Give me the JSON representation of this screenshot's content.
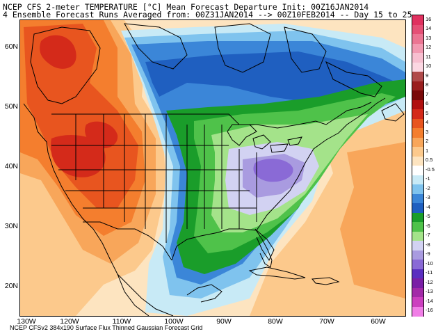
{
  "header": {
    "line1": "NCEP CFS 2-meter TEMPERATURE [°C] Mean Forecast Departure Init: 00Z16JAN2014",
    "line2": "4 Ensemble Forecast Runs Averaged from: 00Z31JAN2014 --> 00Z10FEB2014 -- Day 15 to 25"
  },
  "footer": "NCEP CFSv2 384x190 Surface Flux Thinned Gaussian Forecast Grid",
  "axes": {
    "lat_labels": [
      "60N",
      "50N",
      "40N",
      "30N",
      "20N"
    ],
    "lon_labels": [
      "130W",
      "120W",
      "110W",
      "100W",
      "90W",
      "80W",
      "70W",
      "60W"
    ]
  },
  "legend": {
    "labels": [
      "16",
      "14",
      "13",
      "12",
      "11",
      "10",
      "9",
      "8",
      "7",
      "6",
      "5",
      "4",
      "3",
      "2",
      "1",
      "0.5",
      "-0.5",
      "-1",
      "-2",
      "-3",
      "-4",
      "-5",
      "-6",
      "-7",
      "-8",
      "-9",
      "-10",
      "-11",
      "-12",
      "-13",
      "-14",
      "-16"
    ],
    "colors": [
      "#e0315f",
      "#e55076",
      "#eb7593",
      "#f29ab2",
      "#f7bfd0",
      "#fbd7e2",
      "#b04a4a",
      "#9a1f1f",
      "#7a0a0a",
      "#b01010",
      "#d42a1a",
      "#e8551f",
      "#f47e2e",
      "#f8a65a",
      "#fcc98c",
      "#fde4c0",
      "#ffffff",
      "#c8eaf6",
      "#7fc3ee",
      "#3b86d8",
      "#1f5fc0",
      "#1a9d2a",
      "#4fc24a",
      "#a4e38a",
      "#d2d2f2",
      "#a99be0",
      "#8a6ad6",
      "#5a2ec0",
      "#7a1fa6",
      "#a32aa8",
      "#cc3fbf",
      "#f07ee6"
    ]
  },
  "colors": {
    "warm_outer": "#fde4c0",
    "warm_light": "#fcc98c",
    "warm_mid": "#f8a65a",
    "warm_strong": "#f47e2e",
    "warm_core": "#e8551f",
    "hot": "#d42a1a",
    "neutral": "#ffffff",
    "cool_light": "#c8eaf6",
    "cool_mid": "#7fc3ee",
    "cool_strong": "#3b86d8",
    "cool_deep": "#1f5fc0",
    "green_dark": "#1a9d2a",
    "green_mid": "#4fc24a",
    "green_light": "#a4e38a",
    "lavender": "#d2d2f2",
    "purple_light": "#a99be0",
    "purple": "#8a6ad6",
    "boundary": "#000000"
  }
}
